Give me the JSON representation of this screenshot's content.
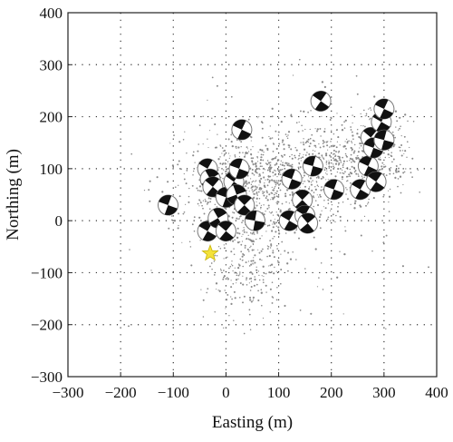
{
  "chart_data": {
    "type": "scatter",
    "xlabel": "Easting (m)",
    "ylabel": "Northing (m)",
    "xlim": [
      -300,
      400
    ],
    "ylim": [
      -300,
      400
    ],
    "xticks": [
      -300,
      -200,
      -100,
      0,
      100,
      200,
      300,
      400
    ],
    "yticks": [
      -300,
      -200,
      -100,
      0,
      100,
      200,
      300,
      400
    ],
    "grid": true,
    "point_color": "#8a8a8a",
    "beachball_color": "#111111",
    "star_color": "#f4e23a",
    "star": {
      "x": -30,
      "y": -63
    },
    "mechanisms": [
      {
        "x": -110,
        "y": 30,
        "strike": 20
      },
      {
        "x": -35,
        "y": 100,
        "strike": 30
      },
      {
        "x": -30,
        "y": 80,
        "strike": 60
      },
      {
        "x": -25,
        "y": 65,
        "strike": 40
      },
      {
        "x": -35,
        "y": -20,
        "strike": 30
      },
      {
        "x": -15,
        "y": 5,
        "strike": 60
      },
      {
        "x": 0,
        "y": -20,
        "strike": 40
      },
      {
        "x": 0,
        "y": 45,
        "strike": 20
      },
      {
        "x": 15,
        "y": 75,
        "strike": 35
      },
      {
        "x": 20,
        "y": 50,
        "strike": 70
      },
      {
        "x": 25,
        "y": 100,
        "strike": 20
      },
      {
        "x": 35,
        "y": 30,
        "strike": 45
      },
      {
        "x": 55,
        "y": 0,
        "strike": 10
      },
      {
        "x": 30,
        "y": 175,
        "strike": 25
      },
      {
        "x": 120,
        "y": 0,
        "strike": 30
      },
      {
        "x": 125,
        "y": 80,
        "strike": 20
      },
      {
        "x": 145,
        "y": 40,
        "strike": 45
      },
      {
        "x": 150,
        "y": 10,
        "strike": 30
      },
      {
        "x": 155,
        "y": -5,
        "strike": 50
      },
      {
        "x": 165,
        "y": 105,
        "strike": 15
      },
      {
        "x": 180,
        "y": 230,
        "strike": 35
      },
      {
        "x": 205,
        "y": 60,
        "strike": 20
      },
      {
        "x": 255,
        "y": 60,
        "strike": 30
      },
      {
        "x": 270,
        "y": 105,
        "strike": 25
      },
      {
        "x": 275,
        "y": 160,
        "strike": 40
      },
      {
        "x": 280,
        "y": 140,
        "strike": 20
      },
      {
        "x": 285,
        "y": 75,
        "strike": 35
      },
      {
        "x": 295,
        "y": 190,
        "strike": 30
      },
      {
        "x": 300,
        "y": 155,
        "strike": 15
      },
      {
        "x": 300,
        "y": 215,
        "strike": 25
      }
    ]
  }
}
